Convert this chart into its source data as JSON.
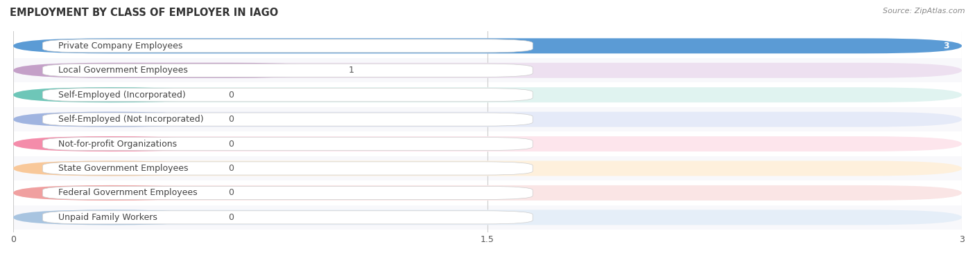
{
  "title": "EMPLOYMENT BY CLASS OF EMPLOYER IN IAGO",
  "source": "Source: ZipAtlas.com",
  "categories": [
    "Private Company Employees",
    "Local Government Employees",
    "Self-Employed (Incorporated)",
    "Self-Employed (Not Incorporated)",
    "Not-for-profit Organizations",
    "State Government Employees",
    "Federal Government Employees",
    "Unpaid Family Workers"
  ],
  "values": [
    3,
    1,
    0,
    0,
    0,
    0,
    0,
    0
  ],
  "bar_colors": [
    "#5b9bd5",
    "#c4a0c8",
    "#6ec6b8",
    "#a0b4e0",
    "#f48caa",
    "#f8c89a",
    "#f0a0a0",
    "#a8c4e0"
  ],
  "bar_bg_colors": [
    "#e8eff8",
    "#ede0f0",
    "#e0f3f0",
    "#e5eaf8",
    "#fde5ec",
    "#fef0dc",
    "#fae5e5",
    "#e5eef8"
  ],
  "xlim": [
    0,
    3
  ],
  "xticks": [
    0,
    1.5,
    3
  ],
  "background_color": "#ffffff",
  "title_fontsize": 11,
  "label_fontsize": 9,
  "value_fontsize": 9
}
